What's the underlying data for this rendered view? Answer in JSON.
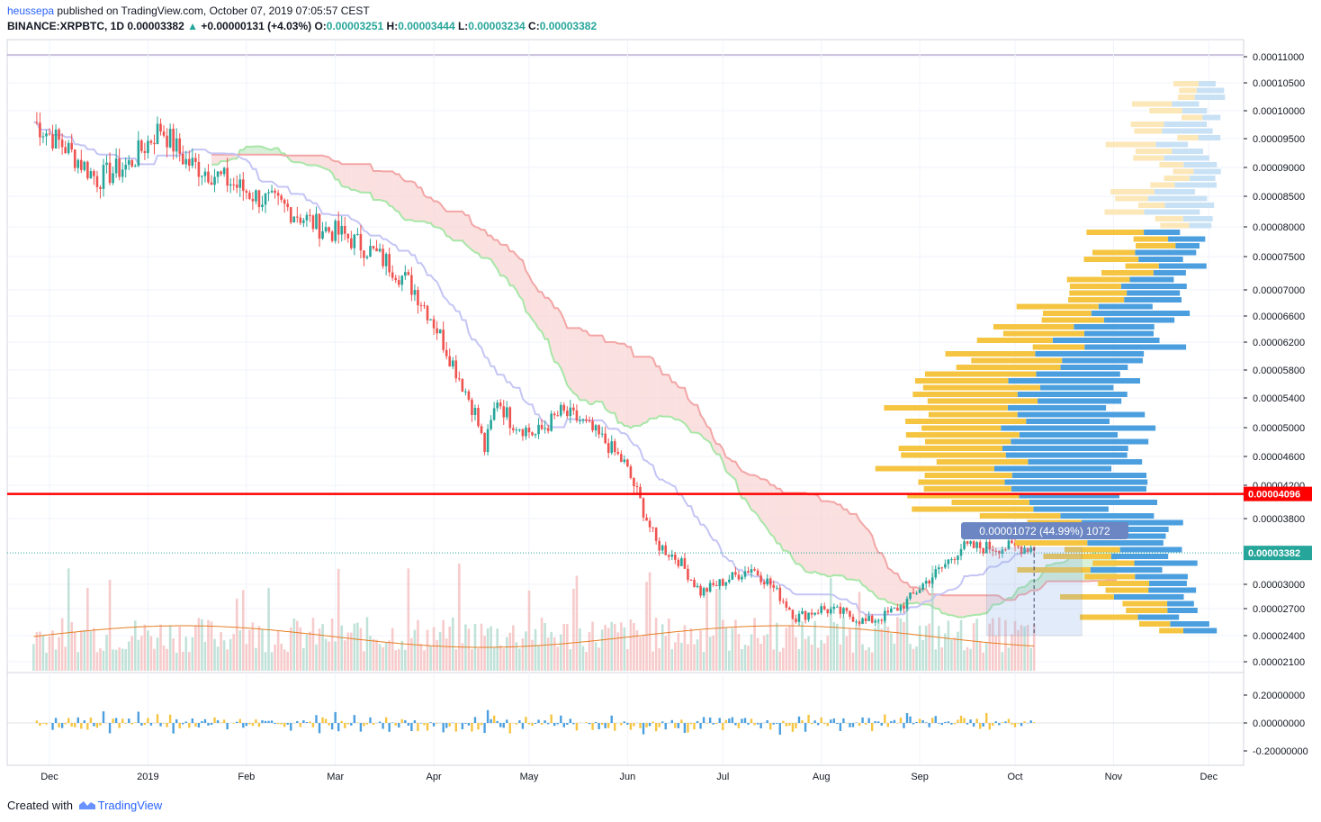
{
  "header": {
    "publisher": "heussepa",
    "published_text": " published on TradingView.com, October 07, 2019 07:05:57 CEST",
    "symbol": "BINANCE:XRPBTC, 1D",
    "last": "0.00003382",
    "change": "+0.00000131 (+4.03%)",
    "open_label": "O:",
    "open": "0.00003251",
    "high_label": "H:",
    "high": "0.00003444",
    "low_label": "L:",
    "low": "0.00003234",
    "close_label": "C:",
    "close": "0.00003382"
  },
  "footer": {
    "created_with": "Created with",
    "brand": "TradingView"
  },
  "colors": {
    "up": "#26a69a",
    "down": "#ef5350",
    "cloud_green": "#b6e3b6",
    "cloud_red": "#f8c7c7",
    "tenkan": "#c5c5f5",
    "kijun_line": "#f3a6a6",
    "senkou_a": "#a8e6a8",
    "hline": "#ff0000",
    "vp_up": "#4b9fde",
    "vp_down": "#f5c542",
    "vp_up_va": "#c9e1f5",
    "vp_down_va": "#fbe7b8"
  },
  "chart_data": {
    "type": "line",
    "y_ticks": [
      "0.00011000",
      "0.00010500",
      "0.00010000",
      "0.00009500",
      "0.00009000",
      "0.00008500",
      "0.00008000",
      "0.00007500",
      "0.00007000",
      "0.00006600",
      "0.00006200",
      "0.00005800",
      "0.00005400",
      "0.00005000",
      "0.00004600",
      "0.00004200",
      "0.00003800",
      "0.00003000",
      "0.00002700",
      "0.00002400",
      "0.00002100"
    ],
    "osc_ticks": [
      "0.20000000",
      "0.00000000",
      "-0.20000000"
    ],
    "x_ticks": [
      "Dec",
      "2019",
      "Feb",
      "Mar",
      "Apr",
      "May",
      "Jun",
      "Jul",
      "Aug",
      "Sep",
      "Oct",
      "Nov",
      "Dec"
    ],
    "price_line": {
      "label": "0.00004096",
      "value": 4.096e-05
    },
    "last_price": {
      "label": "0.00003382",
      "value": 3.382e-05
    },
    "measure_label": "0.00001072 (44.99%) 1072",
    "price_path": [
      [
        0,
        9.8e-05
      ],
      [
        10,
        9.35e-05
      ],
      [
        20,
        8.8e-05
      ],
      [
        30,
        9.05e-05
      ],
      [
        40,
        9.7e-05
      ],
      [
        48,
        9.1e-05
      ],
      [
        58,
        8.85e-05
      ],
      [
        70,
        8.5e-05
      ],
      [
        80,
        8.3e-05
      ],
      [
        90,
        8e-05
      ],
      [
        98,
        7.85e-05
      ],
      [
        106,
        7.6e-05
      ],
      [
        113,
        7.35e-05
      ],
      [
        120,
        7e-05
      ],
      [
        125,
        6.6e-05
      ],
      [
        130,
        6.1e-05
      ],
      [
        135,
        5.6e-05
      ],
      [
        139,
        5.2e-05
      ],
      [
        142,
        4.7e-05
      ],
      [
        146,
        5.4e-05
      ],
      [
        150,
        5.1e-05
      ],
      [
        158,
        4.9e-05
      ],
      [
        166,
        5.2e-05
      ],
      [
        172,
        5.1e-05
      ],
      [
        180,
        4.8e-05
      ],
      [
        186,
        4.5e-05
      ],
      [
        190,
        4.1e-05
      ],
      [
        196,
        3.5e-05
      ],
      [
        203,
        3.3e-05
      ],
      [
        210,
        2.9e-05
      ],
      [
        218,
        3.05e-05
      ],
      [
        226,
        3.2e-05
      ],
      [
        232,
        3e-05
      ],
      [
        240,
        2.6e-05
      ],
      [
        248,
        2.7e-05
      ],
      [
        255,
        2.65e-05
      ],
      [
        262,
        2.55e-05
      ],
      [
        268,
        2.62e-05
      ],
      [
        274,
        2.75e-05
      ],
      [
        280,
        3e-05
      ],
      [
        286,
        3.2e-05
      ],
      [
        292,
        3.45e-05
      ]
    ],
    "notes_x": "x is days since 2018-11-26 (first visible bar)"
  }
}
